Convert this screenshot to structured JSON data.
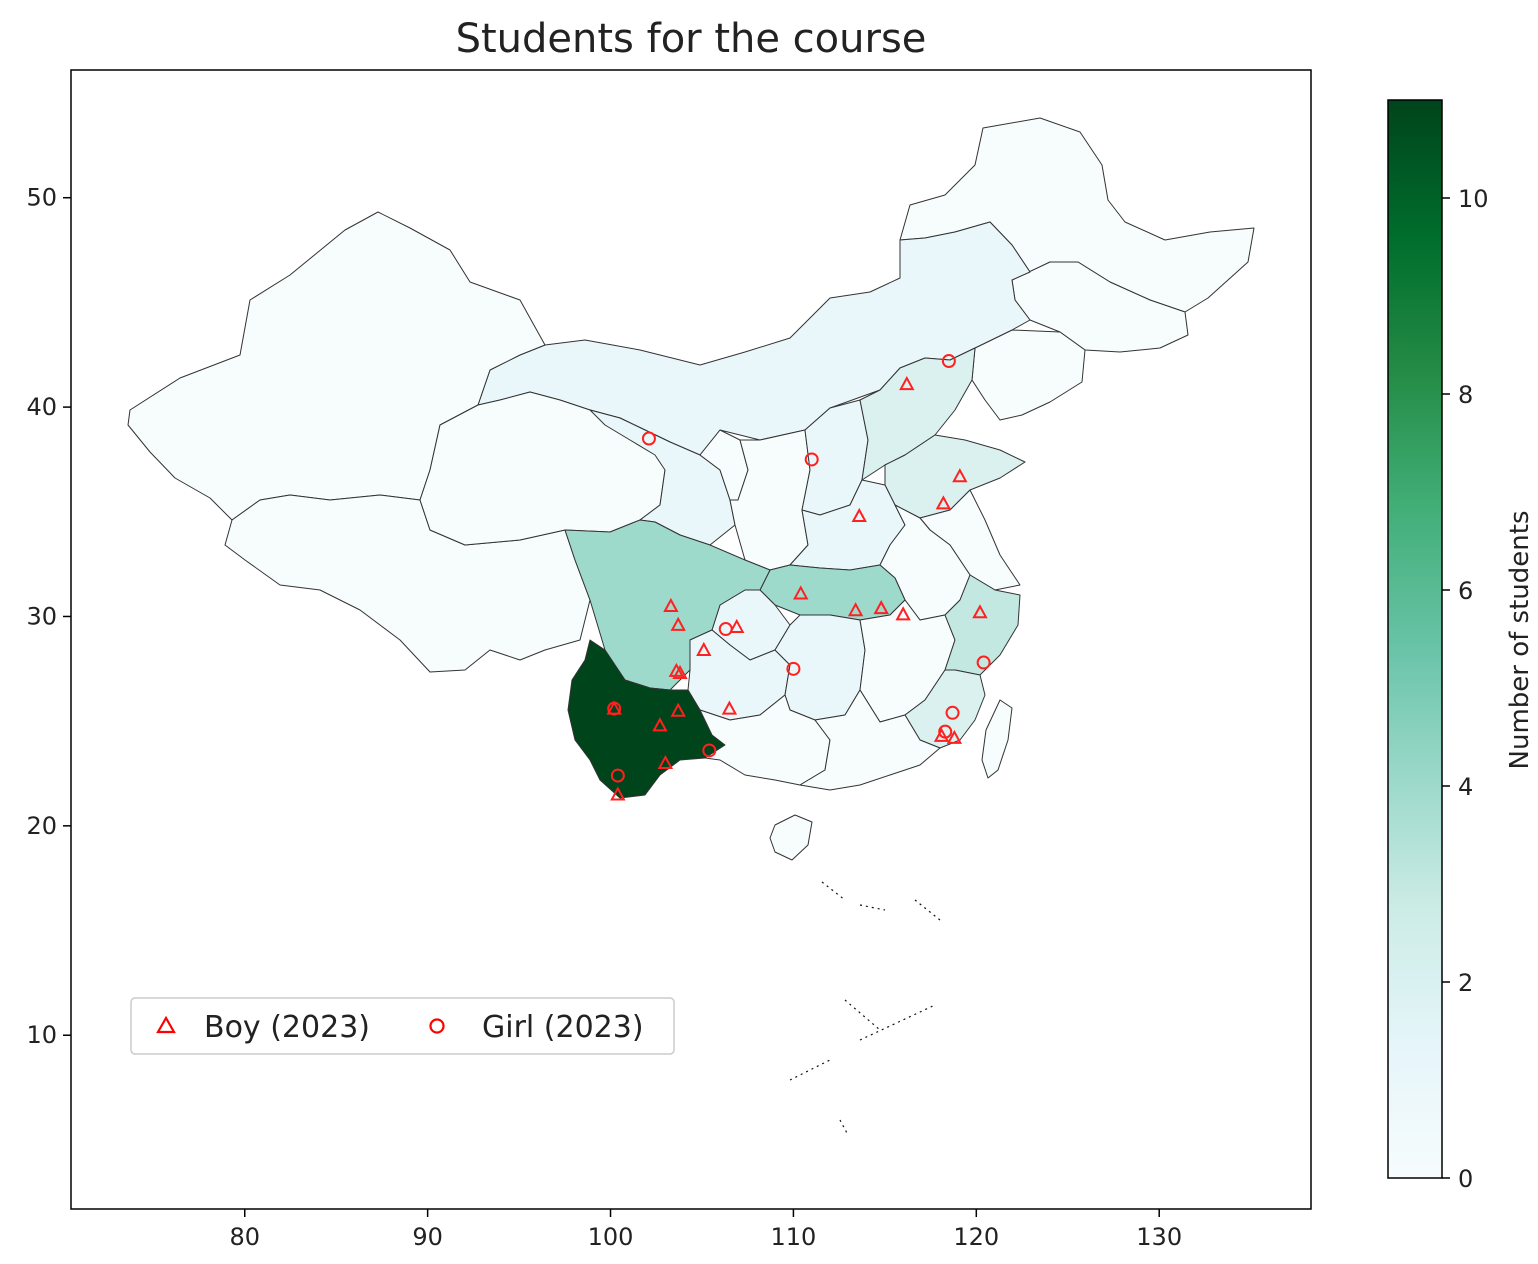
{
  "title": "Students for the course",
  "colorbar": {
    "label": "Number of students",
    "min": 0,
    "max": 11,
    "ticks": [
      "0",
      "2",
      "4",
      "6",
      "8",
      "10"
    ],
    "colors": [
      "#f7fcfd",
      "#e5f5f9",
      "#ccece6",
      "#99d8c9",
      "#66c2a4",
      "#41ae76",
      "#238b45",
      "#006d2c",
      "#00441b"
    ]
  },
  "legend": {
    "placement": "lower-left",
    "entries": [
      {
        "label": "Boy (2023)",
        "marker": "triangle",
        "color": "#ff0000"
      },
      {
        "label": "Girl (2023)",
        "marker": "circle",
        "color": "#ff0000"
      }
    ]
  },
  "chart_data": {
    "type": "scatter",
    "title": "Students for the course",
    "xlim": [
      70.5,
      138.3
    ],
    "ylim": [
      1.7,
      56.1
    ],
    "xticks": [
      "80",
      "90",
      "100",
      "110",
      "120",
      "130"
    ],
    "yticks": [
      "10",
      "20",
      "30",
      "40",
      "50"
    ],
    "grid": false,
    "choropleth": {
      "colormap": "BuGn",
      "value_label": "Number of students",
      "regions": [
        {
          "name": "Yunnan",
          "value": 11
        },
        {
          "name": "Sichuan",
          "value": 4
        },
        {
          "name": "Hubei",
          "value": 4
        },
        {
          "name": "Zhejiang",
          "value": 3
        },
        {
          "name": "Shandong",
          "value": 2
        },
        {
          "name": "Hebei",
          "value": 2
        },
        {
          "name": "Fujian",
          "value": 2
        },
        {
          "name": "Guizhou",
          "value": 1
        },
        {
          "name": "Hunan",
          "value": 1
        },
        {
          "name": "Inner Mongolia",
          "value": 1
        },
        {
          "name": "Gansu",
          "value": 1
        },
        {
          "name": "Chongqing",
          "value": 1
        },
        {
          "name": "Henan",
          "value": 1
        },
        {
          "name": "Shanxi",
          "value": 1
        },
        {
          "name": "Heilongjiang",
          "value": 0
        },
        {
          "name": "Jilin",
          "value": 0
        },
        {
          "name": "Liaoning",
          "value": 0
        },
        {
          "name": "Xinjiang",
          "value": 0
        },
        {
          "name": "Tibet",
          "value": 0
        },
        {
          "name": "Qinghai",
          "value": 0
        },
        {
          "name": "Shaanxi",
          "value": 0
        },
        {
          "name": "Ningxia",
          "value": 0
        },
        {
          "name": "Guangxi",
          "value": 0
        },
        {
          "name": "Guangdong",
          "value": 0
        },
        {
          "name": "Jiangxi",
          "value": 0
        },
        {
          "name": "Anhui",
          "value": 0
        },
        {
          "name": "Jiangsu",
          "value": 0
        },
        {
          "name": "Hainan",
          "value": 0
        },
        {
          "name": "Taiwan",
          "value": 0
        }
      ]
    },
    "series": [
      {
        "name": "Boy (2023)",
        "marker": "triangle",
        "points": [
          [
            116.2,
            41.1
          ],
          [
            119.1,
            36.7
          ],
          [
            118.2,
            35.4
          ],
          [
            113.6,
            34.8
          ],
          [
            110.4,
            31.1
          ],
          [
            113.4,
            30.3
          ],
          [
            114.8,
            30.4
          ],
          [
            116.0,
            30.1
          ],
          [
            120.2,
            30.2
          ],
          [
            103.3,
            30.5
          ],
          [
            103.7,
            29.6
          ],
          [
            106.9,
            29.5
          ],
          [
            105.1,
            28.4
          ],
          [
            103.6,
            27.4
          ],
          [
            103.8,
            27.3
          ],
          [
            106.5,
            25.6
          ],
          [
            103.7,
            25.5
          ],
          [
            102.7,
            24.8
          ],
          [
            103.0,
            23.0
          ],
          [
            100.4,
            21.5
          ],
          [
            118.1,
            24.3
          ],
          [
            118.8,
            24.2
          ],
          [
            100.2,
            25.6
          ]
        ]
      },
      {
        "name": "Girl (2023)",
        "marker": "circle",
        "points": [
          [
            118.5,
            42.2
          ],
          [
            102.1,
            38.5
          ],
          [
            111.0,
            37.5
          ],
          [
            106.3,
            29.4
          ],
          [
            110.0,
            27.5
          ],
          [
            120.4,
            27.8
          ],
          [
            118.7,
            25.4
          ],
          [
            118.3,
            24.5
          ],
          [
            100.2,
            25.6
          ],
          [
            105.4,
            23.6
          ],
          [
            100.4,
            22.4
          ]
        ]
      }
    ]
  }
}
